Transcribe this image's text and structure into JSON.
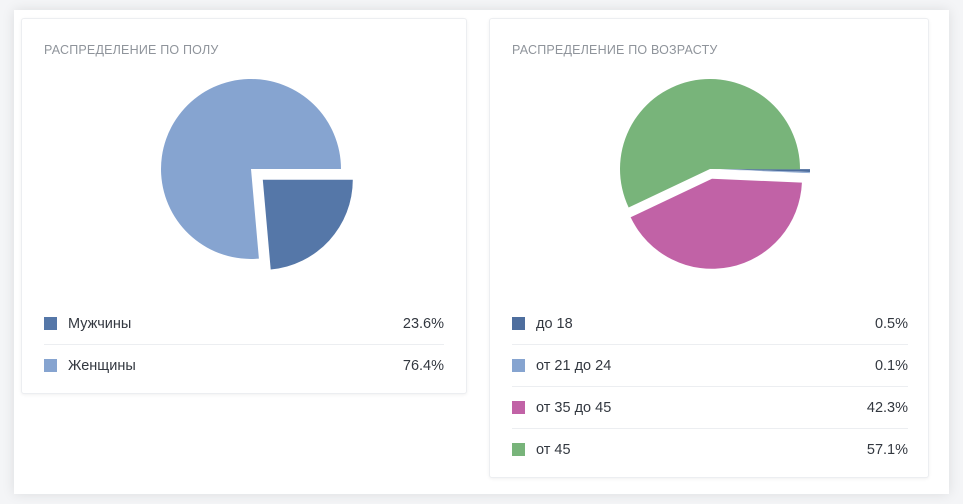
{
  "colors": {
    "male": "#5577a8",
    "female": "#86a4d0",
    "under18": "#4e6e9e",
    "age21_24": "#86a4d0",
    "age35_45": "#c162a6",
    "over45": "#78b47a"
  },
  "chart_data": [
    {
      "type": "pie",
      "title": "РАСПРЕДЕЛЕНИЕ ПО ПОЛУ",
      "legend": "bottom",
      "series": [
        {
          "name": "Мужчины",
          "value": 23.6,
          "label": "23.6%",
          "color": "#5577a8",
          "exploded": true
        },
        {
          "name": "Женщины",
          "value": 76.4,
          "label": "76.4%",
          "color": "#86a4d0",
          "exploded": false
        }
      ]
    },
    {
      "type": "pie",
      "title": "РАСПРЕДЕЛЕНИЕ ПО ВОЗРАСТУ",
      "legend": "bottom",
      "series": [
        {
          "name": "до 18",
          "value": 0.5,
          "label": "0.5%",
          "color": "#4e6e9e",
          "exploded": true
        },
        {
          "name": "от 21 до 24",
          "value": 0.1,
          "label": "0.1%",
          "color": "#86a4d0",
          "exploded": true
        },
        {
          "name": "от 35 до 45",
          "value": 42.3,
          "label": "42.3%",
          "color": "#c162a6",
          "exploded": true
        },
        {
          "name": "от 45",
          "value": 57.1,
          "label": "57.1%",
          "color": "#78b47a",
          "exploded": false
        }
      ]
    }
  ]
}
